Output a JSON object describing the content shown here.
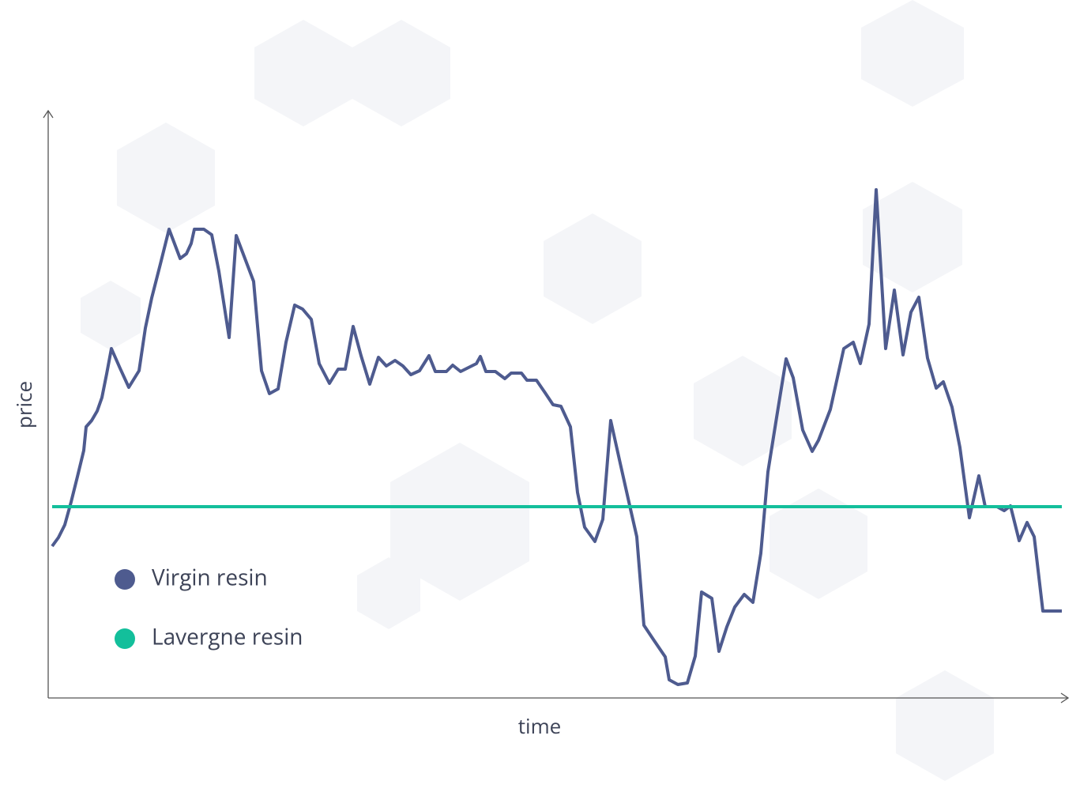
{
  "chart_data": {
    "type": "line",
    "x_label": "time",
    "y_label": "price",
    "xlim": [
      0,
      1291
    ],
    "ylim": [
      0,
      743
    ],
    "grid": false,
    "series": [
      {
        "name": "Virgin resin",
        "color": "#4e5b8f",
        "x": [
          5,
          13,
          21,
          29,
          37,
          45,
          48,
          55,
          62,
          68,
          74,
          80,
          91,
          102,
          115,
          123,
          131,
          142,
          153,
          167,
          175,
          181,
          185,
          197,
          207,
          216,
          229,
          238,
          249,
          260,
          270,
          280,
          291,
          301,
          312,
          322,
          333,
          343,
          356,
          367,
          376,
          386,
          396,
          407,
          418,
          428,
          439,
          449,
          459,
          470,
          482,
          490,
          504,
          512,
          522,
          532,
          542,
          547,
          554,
          566,
          578,
          586,
          599,
          606,
          618,
          629,
          639,
          649,
          661,
          670,
          679,
          692,
          702,
          712,
          724,
          735,
          745,
          754,
          766,
          781,
          786,
          797,
          809,
          819,
          827,
          840,
          849,
          859,
          869,
          881,
          892,
          902,
          911,
          922,
          934,
          943,
          955,
          967,
          975,
          990,
          1007,
          1019,
          1028,
          1039,
          1048,
          1060,
          1071,
          1082,
          1092,
          1102,
          1113,
          1124,
          1133,
          1144,
          1154,
          1166,
          1178,
          1186,
          1201,
          1210,
          1218,
          1229,
          1239,
          1248,
          1259,
          1283
        ],
        "values": [
          192,
          203,
          219,
          248,
          280,
          313,
          343,
          351,
          363,
          380,
          410,
          442,
          417,
          393,
          414,
          468,
          506,
          549,
          593,
          556,
          562,
          575,
          593,
          593,
          586,
          540,
          456,
          585,
          556,
          527,
          414,
          385,
          391,
          450,
          497,
          492,
          479,
          423,
          398,
          416,
          416,
          470,
          433,
          397,
          431,
          420,
          427,
          420,
          409,
          414,
          433,
          413,
          413,
          421,
          413,
          418,
          423,
          432,
          413,
          413,
          404,
          411,
          411,
          402,
          402,
          386,
          371,
          369,
          343,
          260,
          216,
          198,
          226,
          351,
          297,
          248,
          204,
          92,
          74,
          52,
          23,
          17,
          19,
          53,
          134,
          126,
          59,
          90,
          115,
          131,
          121,
          183,
          286,
          355,
          429,
          405,
          339,
          312,
          326,
          365,
          442,
          450,
          423,
          473,
          643,
          442,
          516,
          434,
          488,
          507,
          430,
          392,
          400,
          368,
          317,
          228,
          281,
          242,
          242,
          237,
          243,
          199,
          222,
          204,
          110,
          110
        ]
      },
      {
        "name": "Lavergne resin",
        "color": "#13bf9b",
        "x": [
          5,
          1283
        ],
        "values": [
          242,
          242
        ]
      }
    ]
  }
}
